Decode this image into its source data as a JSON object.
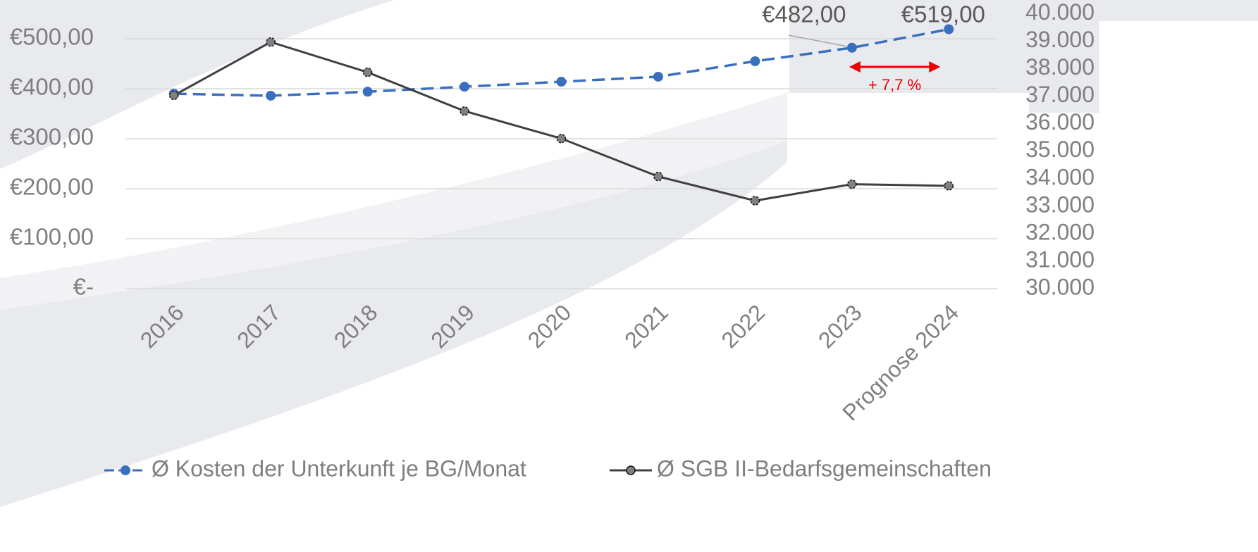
{
  "chart_data": {
    "type": "line",
    "categories": [
      "2016",
      "2017",
      "2018",
      "2019",
      "2020",
      "2021",
      "2022",
      "2023",
      "Prognose 2024"
    ],
    "series": [
      {
        "name": "Ø Kosten der Unterkunft je BG/Monat",
        "color": "#3a6fbf",
        "line_style": "dashed",
        "axis": "y",
        "values": [
          390,
          386,
          394,
          404,
          414,
          424,
          455,
          482,
          519
        ],
        "value_labels": [
          null,
          null,
          null,
          null,
          null,
          null,
          null,
          "€482,00",
          "€519,00"
        ]
      },
      {
        "name": "Ø SGB II-Bedarfsgemeinschaften",
        "color": "#404040",
        "line_style": "solid",
        "axis": "y2",
        "values": [
          37030,
          38970,
          37870,
          36460,
          35460,
          34080,
          33200,
          33800,
          33740
        ]
      }
    ],
    "ylim": [
      0,
      550
    ],
    "yticks": [
      {
        "value": 0,
        "label": "€-"
      },
      {
        "value": 100,
        "label": "€100,00"
      },
      {
        "value": 200,
        "label": "€200,00"
      },
      {
        "value": 300,
        "label": "€300,00"
      },
      {
        "value": 400,
        "label": "€400,00"
      },
      {
        "value": 500,
        "label": "€500,00"
      }
    ],
    "y2lim": [
      30000,
      40000
    ],
    "y2ticks": [
      {
        "value": 30000,
        "label": "30.000"
      },
      {
        "value": 31000,
        "label": "31.000"
      },
      {
        "value": 32000,
        "label": "32.000"
      },
      {
        "value": 33000,
        "label": "33.000"
      },
      {
        "value": 34000,
        "label": "34.000"
      },
      {
        "value": 35000,
        "label": "35.000"
      },
      {
        "value": 36000,
        "label": "36.000"
      },
      {
        "value": 37000,
        "label": "37.000"
      },
      {
        "value": 38000,
        "label": "38.000"
      },
      {
        "value": 39000,
        "label": "39.000"
      },
      {
        "value": 40000,
        "label": "40.000"
      }
    ],
    "annotation": "+ 7,7 %",
    "grid": true,
    "legend": "bottom"
  }
}
